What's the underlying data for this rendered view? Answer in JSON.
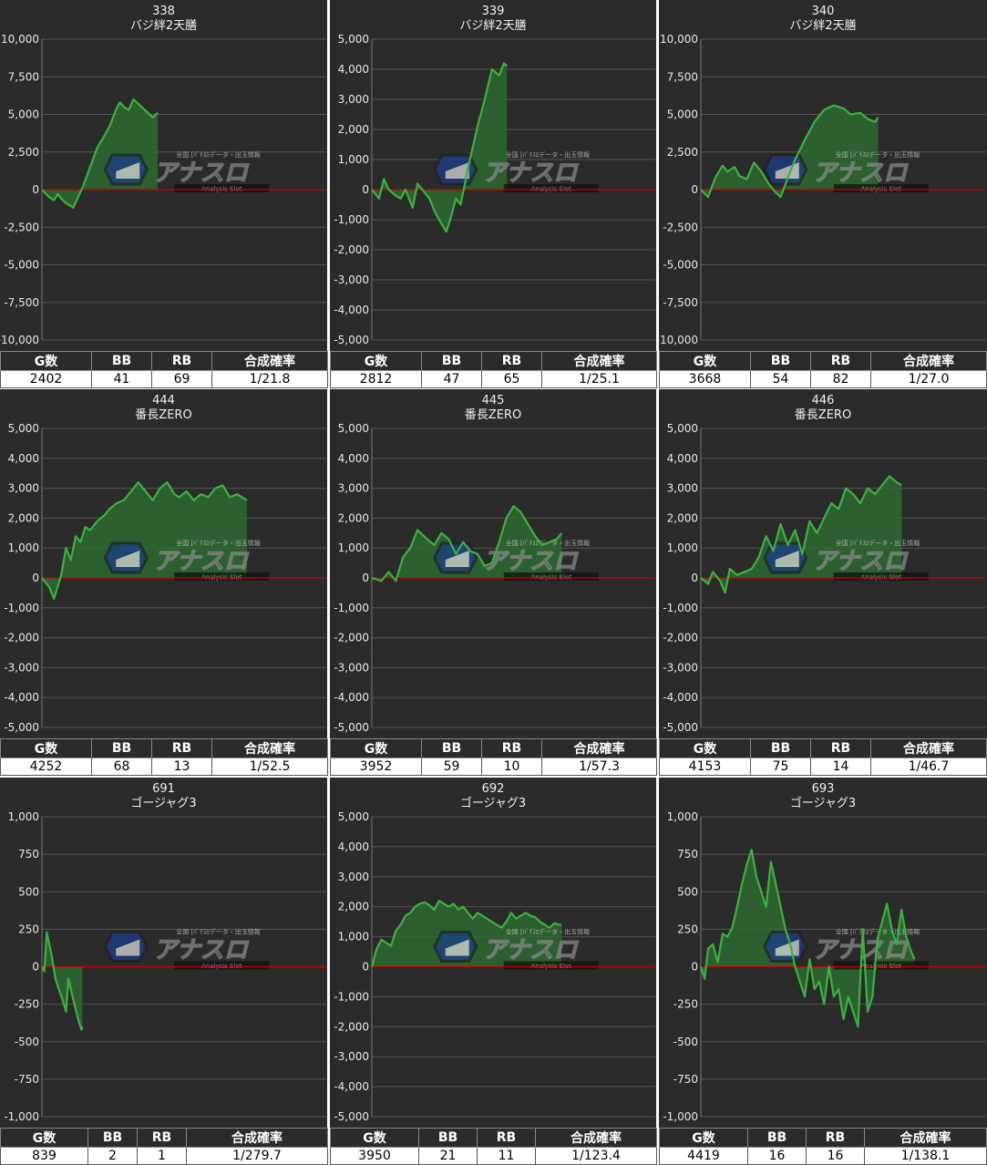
{
  "headers": {
    "games": "G数",
    "bb": "BB",
    "rb": "RB",
    "rate": "合成確率"
  },
  "watermark": {
    "small": "全国 [ﾊﾟﾁｽﾛデータ・出玉情報",
    "logo": "アナスロ",
    "sub": "—Analysis Slot—"
  },
  "colors": {
    "background": "#2b2b2b",
    "line": "#3fb13f",
    "fill": "#2e6a32",
    "zero_line": "#cc0000",
    "grid": "#555555"
  },
  "chart_data": [
    {
      "type": "line",
      "machine_no": "338",
      "title": "バジ絆2天膳",
      "ylim": [
        -10000,
        10000
      ],
      "yticks": [
        10000,
        7500,
        5000,
        2500,
        0,
        -2500,
        -5000,
        -7500,
        -10000
      ],
      "ytick_labels": [
        "10,000",
        "7,500",
        "5,000",
        "2,500",
        "0",
        "-2,500",
        "-5,000",
        "-7,500",
        "-10,000"
      ],
      "x": [
        0,
        150,
        250,
        330,
        400,
        500,
        650,
        850,
        1000,
        1150,
        1300,
        1420,
        1500,
        1550,
        1620,
        1700,
        1800,
        1900,
        2000,
        2100,
        2200,
        2300,
        2402
      ],
      "y": [
        0,
        -500,
        -700,
        -300,
        -600,
        -900,
        -1200,
        200,
        1500,
        2800,
        3600,
        4300,
        5000,
        5400,
        5800,
        5500,
        5300,
        6000,
        5700,
        5400,
        5100,
        4800,
        5100
      ],
      "stats": {
        "games": "2402",
        "bb": "41",
        "rb": "69",
        "rate": "1/21.8"
      }
    },
    {
      "type": "line",
      "machine_no": "339",
      "title": "バジ絆2天膳",
      "ylim": [
        -5000,
        5000
      ],
      "yticks": [
        5000,
        4000,
        3000,
        2000,
        1000,
        0,
        -1000,
        -2000,
        -3000,
        -4000,
        -5000
      ],
      "ytick_labels": [
        "5,000",
        "4,000",
        "3,000",
        "2,000",
        "1,000",
        "0",
        "-1,000",
        "-2,000",
        "-3,000",
        "-4,000",
        "-5,000"
      ],
      "x": [
        0,
        150,
        250,
        350,
        500,
        600,
        700,
        850,
        950,
        1050,
        1200,
        1300,
        1400,
        1550,
        1650,
        1750,
        1850,
        2000,
        2100,
        2200,
        2350,
        2500,
        2650,
        2750,
        2812
      ],
      "y": [
        0,
        -300,
        350,
        0,
        -200,
        -300,
        0,
        -600,
        200,
        0,
        -300,
        -700,
        -1000,
        -1400,
        -900,
        -300,
        -500,
        700,
        1400,
        2100,
        3000,
        4000,
        3800,
        4200,
        4100
      ],
      "stats": {
        "games": "2812",
        "bb": "47",
        "rb": "65",
        "rate": "1/25.1"
      }
    },
    {
      "type": "line",
      "machine_no": "340",
      "title": "バジ絆2天膳",
      "ylim": [
        -10000,
        10000
      ],
      "yticks": [
        10000,
        7500,
        5000,
        2500,
        0,
        -2500,
        -5000,
        -7500,
        -10000
      ],
      "ytick_labels": [
        "10,000",
        "7,500",
        "5,000",
        "2,500",
        "0",
        "-2,500",
        "-5,000",
        "-7,500",
        "-10,000"
      ],
      "x": [
        0,
        150,
        300,
        450,
        550,
        700,
        800,
        950,
        1100,
        1250,
        1400,
        1550,
        1650,
        1800,
        1950,
        2150,
        2350,
        2550,
        2750,
        2950,
        3100,
        3300,
        3450,
        3600,
        3668
      ],
      "y": [
        0,
        -500,
        800,
        1600,
        1200,
        1500,
        900,
        700,
        1800,
        1200,
        400,
        -200,
        -500,
        800,
        2000,
        3300,
        4500,
        5300,
        5600,
        5400,
        5000,
        5100,
        4700,
        4500,
        4800
      ],
      "stats": {
        "games": "3668",
        "bb": "54",
        "rb": "82",
        "rate": "1/27.0"
      }
    },
    {
      "type": "line",
      "machine_no": "444",
      "title": "番長ZERO",
      "ylim": [
        -5000,
        5000
      ],
      "yticks": [
        5000,
        4000,
        3000,
        2000,
        1000,
        0,
        -1000,
        -2000,
        -3000,
        -4000,
        -5000
      ],
      "ytick_labels": [
        "5,000",
        "4,000",
        "3,000",
        "2,000",
        "1,000",
        "0",
        "-1,000",
        "-2,000",
        "-3,000",
        "-4,000",
        "-5,000"
      ],
      "x": [
        0,
        150,
        250,
        400,
        500,
        600,
        700,
        800,
        900,
        1000,
        1150,
        1300,
        1400,
        1550,
        1700,
        1850,
        2000,
        2150,
        2300,
        2450,
        2600,
        2750,
        2850,
        3000,
        3150,
        3300,
        3450,
        3600,
        3750,
        3900,
        4050,
        4150,
        4252
      ],
      "y": [
        0,
        -300,
        -700,
        100,
        1000,
        600,
        1400,
        1200,
        1700,
        1600,
        1900,
        2100,
        2300,
        2500,
        2600,
        2900,
        3200,
        2900,
        2600,
        3000,
        3200,
        2800,
        2700,
        2900,
        2600,
        2800,
        2700,
        3000,
        3100,
        2700,
        2800,
        2700,
        2600
      ],
      "stats": {
        "games": "4252",
        "bb": "68",
        "rb": "13",
        "rate": "1/52.5"
      }
    },
    {
      "type": "line",
      "machine_no": "445",
      "title": "番長ZERO",
      "ylim": [
        -5000,
        5000
      ],
      "yticks": [
        5000,
        4000,
        3000,
        2000,
        1000,
        0,
        -1000,
        -2000,
        -3000,
        -4000,
        -5000
      ],
      "ytick_labels": [
        "5,000",
        "4,000",
        "3,000",
        "2,000",
        "1,000",
        "0",
        "-1,000",
        "-2,000",
        "-3,000",
        "-4,000",
        "-5,000"
      ],
      "x": [
        0,
        200,
        350,
        500,
        650,
        800,
        950,
        1150,
        1300,
        1450,
        1600,
        1750,
        1900,
        2050,
        2200,
        2350,
        2500,
        2650,
        2800,
        2950,
        3100,
        3250,
        3400,
        3550,
        3700,
        3850,
        3952
      ],
      "y": [
        0,
        -100,
        200,
        -100,
        700,
        1000,
        1600,
        1300,
        1100,
        1500,
        1300,
        800,
        1200,
        900,
        800,
        400,
        500,
        1200,
        2000,
        2400,
        2200,
        1800,
        1400,
        1100,
        1200,
        1300,
        1500
      ],
      "stats": {
        "games": "3952",
        "bb": "59",
        "rb": "10",
        "rate": "1/57.3"
      }
    },
    {
      "type": "line",
      "machine_no": "446",
      "title": "番長ZERO",
      "ylim": [
        -5000,
        5000
      ],
      "yticks": [
        5000,
        4000,
        3000,
        2000,
        1000,
        0,
        -1000,
        -2000,
        -3000,
        -4000,
        -5000
      ],
      "ytick_labels": [
        "5,000",
        "4,000",
        "3,000",
        "2,000",
        "1,000",
        "0",
        "-1,000",
        "-2,000",
        "-3,000",
        "-4,000",
        "-5,000"
      ],
      "x": [
        0,
        150,
        250,
        400,
        500,
        600,
        750,
        900,
        1050,
        1200,
        1350,
        1500,
        1650,
        1800,
        1950,
        2100,
        2250,
        2400,
        2550,
        2700,
        2850,
        3000,
        3150,
        3300,
        3450,
        3600,
        3750,
        3900,
        4050,
        4153
      ],
      "y": [
        0,
        -200,
        200,
        -100,
        -500,
        300,
        100,
        200,
        300,
        700,
        1400,
        900,
        1800,
        1100,
        1600,
        800,
        1900,
        1500,
        2000,
        2500,
        2300,
        3000,
        2800,
        2500,
        3000,
        2800,
        3100,
        3400,
        3200,
        3100
      ],
      "stats": {
        "games": "4153",
        "bb": "75",
        "rb": "14",
        "rate": "1/46.7"
      }
    },
    {
      "type": "line",
      "machine_no": "691",
      "title": "ゴージャグ3",
      "ylim": [
        -1000,
        1000
      ],
      "yticks": [
        1000,
        750,
        500,
        250,
        0,
        -250,
        -500,
        -750,
        -1000
      ],
      "ytick_labels": [
        "1,000",
        "750",
        "500",
        "250",
        "0",
        "-250",
        "-500",
        "-750",
        "-1,000"
      ],
      "x": [
        0,
        50,
        100,
        200,
        280,
        350,
        430,
        500,
        550,
        600,
        650,
        700,
        760,
        820,
        839
      ],
      "y": [
        0,
        -30,
        230,
        80,
        -80,
        -150,
        -220,
        -300,
        -80,
        -150,
        -220,
        -280,
        -360,
        -420,
        -400
      ],
      "stats": {
        "games": "839",
        "bb": "2",
        "rb": "1",
        "rate": "1/279.7"
      }
    },
    {
      "type": "line",
      "machine_no": "692",
      "title": "ゴージャグ3",
      "ylim": [
        -5000,
        5000
      ],
      "yticks": [
        5000,
        4000,
        3000,
        2000,
        1000,
        0,
        -1000,
        -2000,
        -3000,
        -4000,
        -5000
      ],
      "ytick_labels": [
        "5,000",
        "4,000",
        "3,000",
        "2,000",
        "1,000",
        "0",
        "-1,000",
        "-2,000",
        "-3,000",
        "-4,000",
        "-5,000"
      ],
      "x": [
        0,
        100,
        200,
        300,
        400,
        500,
        600,
        700,
        800,
        900,
        1000,
        1100,
        1200,
        1300,
        1400,
        1500,
        1600,
        1700,
        1800,
        1900,
        2000,
        2100,
        2200,
        2300,
        2400,
        2500,
        2600,
        2700,
        2800,
        2900,
        3000,
        3100,
        3200,
        3300,
        3400,
        3500,
        3600,
        3700,
        3800,
        3900,
        3950
      ],
      "y": [
        0,
        600,
        900,
        800,
        700,
        1200,
        1400,
        1700,
        1800,
        2000,
        2100,
        2150,
        2050,
        1900,
        2200,
        2100,
        2000,
        2100,
        1900,
        2000,
        1800,
        1600,
        1800,
        1700,
        1600,
        1500,
        1400,
        1300,
        1500,
        1800,
        1600,
        1700,
        1800,
        1700,
        1650,
        1500,
        1400,
        1300,
        1450,
        1400,
        1400
      ],
      "stats": {
        "games": "3950",
        "bb": "21",
        "rb": "11",
        "rate": "1/123.4"
      }
    },
    {
      "type": "line",
      "machine_no": "693",
      "title": "ゴージャグ3",
      "ylim": [
        -1000,
        1000
      ],
      "yticks": [
        1000,
        750,
        500,
        250,
        0,
        -250,
        -500,
        -750,
        -1000
      ],
      "ytick_labels": [
        "1,000",
        "750",
        "500",
        "250",
        "0",
        "-250",
        "-500",
        "-750",
        "-1,000"
      ],
      "x": [
        0,
        80,
        150,
        250,
        350,
        450,
        550,
        650,
        750,
        850,
        950,
        1050,
        1150,
        1250,
        1350,
        1450,
        1550,
        1650,
        1750,
        1850,
        1950,
        2050,
        2150,
        2250,
        2350,
        2450,
        2550,
        2650,
        2750,
        2850,
        2950,
        3050,
        3150,
        3250,
        3350,
        3450,
        3550,
        3650,
        3750,
        3850,
        3950,
        4050,
        4150,
        4250,
        4350,
        4419
      ],
      "y": [
        0,
        -80,
        120,
        150,
        30,
        220,
        200,
        260,
        400,
        550,
        680,
        780,
        600,
        500,
        400,
        700,
        550,
        400,
        250,
        150,
        0,
        -100,
        -200,
        50,
        -150,
        -100,
        -250,
        0,
        -200,
        -150,
        -350,
        -200,
        -300,
        -400,
        250,
        -300,
        -200,
        180,
        300,
        420,
        250,
        150,
        380,
        200,
        100,
        50
      ],
      "stats": {
        "games": "4419",
        "bb": "16",
        "rb": "16",
        "rate": "1/138.1"
      }
    }
  ]
}
